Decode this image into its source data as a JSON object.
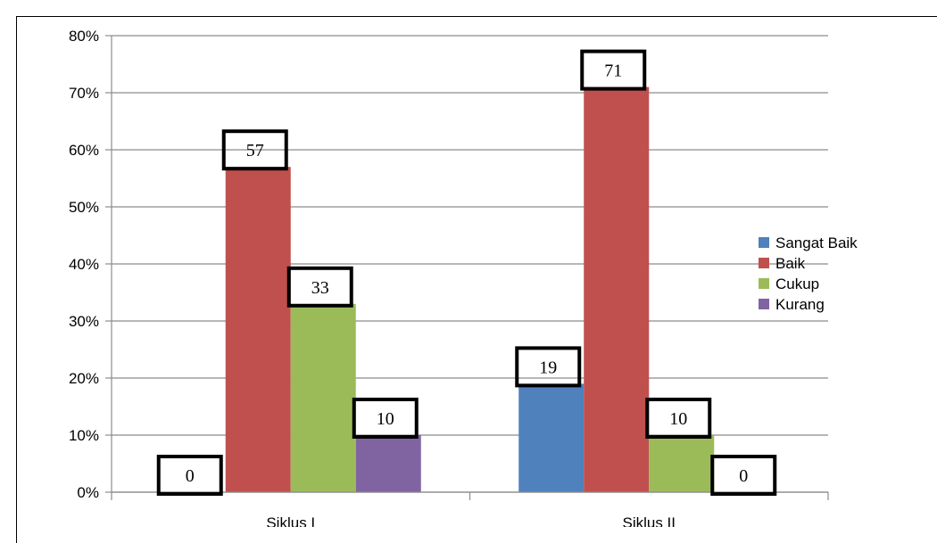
{
  "chart_data": {
    "type": "bar",
    "categories": [
      "Siklus I",
      "Siklus II"
    ],
    "series": [
      {
        "name": "Sangat Baik",
        "values": [
          0,
          19
        ],
        "labels": [
          "0",
          "19"
        ],
        "color": "#4f81bd"
      },
      {
        "name": "Baik",
        "values": [
          57,
          71
        ],
        "labels": [
          "57",
          "71"
        ],
        "color": "#c0504d"
      },
      {
        "name": "Cukup",
        "values": [
          33,
          10
        ],
        "labels": [
          "33",
          "10"
        ],
        "color": "#9bbb59"
      },
      {
        "name": "Kurang",
        "values": [
          10,
          0
        ],
        "labels": [
          "10",
          "0"
        ],
        "color": "#8064a2"
      }
    ],
    "yticks": [
      "0%",
      "10%",
      "20%",
      "30%",
      "40%",
      "50%",
      "60%",
      "70%",
      "80%"
    ],
    "ylim": [
      0,
      80
    ],
    "grid": true,
    "legend_position": "right"
  }
}
